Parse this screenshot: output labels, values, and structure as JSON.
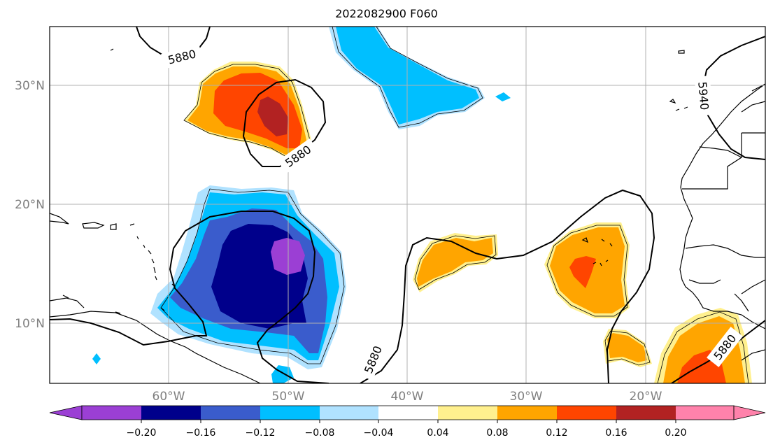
{
  "title": "2022082900 F060",
  "map": {
    "lat_ticks": [
      {
        "value": 30,
        "label": "30°N"
      },
      {
        "value": 20,
        "label": "20°N"
      },
      {
        "value": 10,
        "label": "10°N"
      }
    ],
    "lon_ticks": [
      {
        "value": -60,
        "label": "60°W"
      },
      {
        "value": -50,
        "label": "50°W"
      },
      {
        "value": -40,
        "label": "40°W"
      },
      {
        "value": -30,
        "label": "30°W"
      },
      {
        "value": -20,
        "label": "20°W"
      }
    ],
    "extent": {
      "lon_min": -70,
      "lon_max": -10,
      "lat_min": 5,
      "lat_max": 35
    },
    "contour_labels": [
      "5880",
      "5880",
      "5880",
      "5880",
      "5940"
    ]
  },
  "colorbar": {
    "ticks": [
      "−0.20",
      "−0.16",
      "−0.12",
      "−0.08",
      "−0.04",
      "0.04",
      "0.08",
      "0.12",
      "0.16",
      "0.20"
    ],
    "colors": [
      "#9b3fd4",
      "#00008b",
      "#3a5ccc",
      "#00bfff",
      "#b0e2ff",
      "#ffffff",
      "#ffec8b",
      "#ffa500",
      "#ff4500",
      "#b22222",
      "#ff82ab"
    ]
  },
  "colors": {
    "purple": "#9b3fd4",
    "navy": "#00008b",
    "royal": "#3a5ccc",
    "sky": "#00bfff",
    "pale_blue": "#b0e2ff",
    "khaki": "#fff08e",
    "orange": "#ffa500",
    "red_orange": "#ff4500",
    "firebrick": "#b22222",
    "pink": "#ff82ab"
  }
}
